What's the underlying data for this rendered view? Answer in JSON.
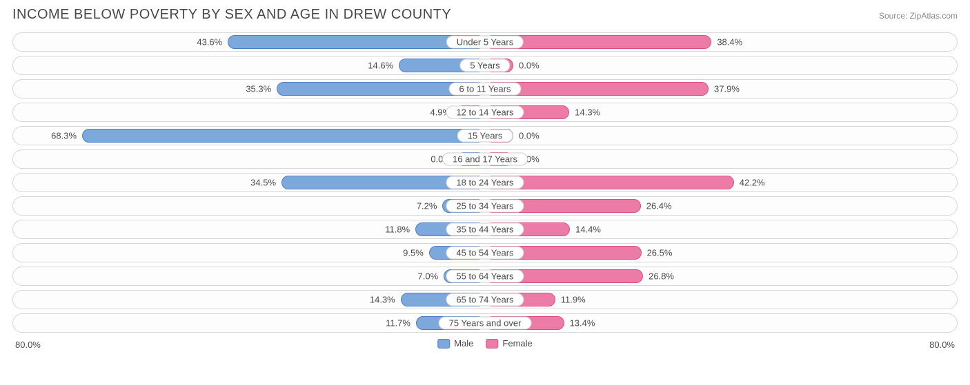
{
  "title": "INCOME BELOW POVERTY BY SEX AND AGE IN DREW COUNTY",
  "source": "Source: ZipAtlas.com",
  "axis_max": 80.0,
  "axis_label_left": "80.0%",
  "axis_label_right": "80.0%",
  "min_bar_pct": 6.0,
  "colors": {
    "male_fill": "#7da8db",
    "male_border": "#4f7ec6",
    "female_fill": "#ed7ba7",
    "female_border": "#d94e87",
    "row_border": "#d7d7d7",
    "text": "#4a4a4a"
  },
  "legend": {
    "male": "Male",
    "female": "Female"
  },
  "rows": [
    {
      "label": "Under 5 Years",
      "male": 43.6,
      "female": 38.4,
      "male_txt": "43.6%",
      "female_txt": "38.4%"
    },
    {
      "label": "5 Years",
      "male": 14.6,
      "female": 0.0,
      "male_txt": "14.6%",
      "female_txt": "0.0%"
    },
    {
      "label": "6 to 11 Years",
      "male": 35.3,
      "female": 37.9,
      "male_txt": "35.3%",
      "female_txt": "37.9%"
    },
    {
      "label": "12 to 14 Years",
      "male": 4.9,
      "female": 14.3,
      "male_txt": "4.9%",
      "female_txt": "14.3%"
    },
    {
      "label": "15 Years",
      "male": 68.3,
      "female": 0.0,
      "male_txt": "68.3%",
      "female_txt": "0.0%"
    },
    {
      "label": "16 and 17 Years",
      "male": 0.0,
      "female": 0.0,
      "male_txt": "0.0%",
      "female_txt": "0.0%"
    },
    {
      "label": "18 to 24 Years",
      "male": 34.5,
      "female": 42.2,
      "male_txt": "34.5%",
      "female_txt": "42.2%"
    },
    {
      "label": "25 to 34 Years",
      "male": 7.2,
      "female": 26.4,
      "male_txt": "7.2%",
      "female_txt": "26.4%"
    },
    {
      "label": "35 to 44 Years",
      "male": 11.8,
      "female": 14.4,
      "male_txt": "11.8%",
      "female_txt": "14.4%"
    },
    {
      "label": "45 to 54 Years",
      "male": 9.5,
      "female": 26.5,
      "male_txt": "9.5%",
      "female_txt": "26.5%"
    },
    {
      "label": "55 to 64 Years",
      "male": 7.0,
      "female": 26.8,
      "male_txt": "7.0%",
      "female_txt": "26.8%"
    },
    {
      "label": "65 to 74 Years",
      "male": 14.3,
      "female": 11.9,
      "male_txt": "14.3%",
      "female_txt": "11.9%"
    },
    {
      "label": "75 Years and over",
      "male": 11.7,
      "female": 13.4,
      "male_txt": "11.7%",
      "female_txt": "13.4%"
    }
  ]
}
